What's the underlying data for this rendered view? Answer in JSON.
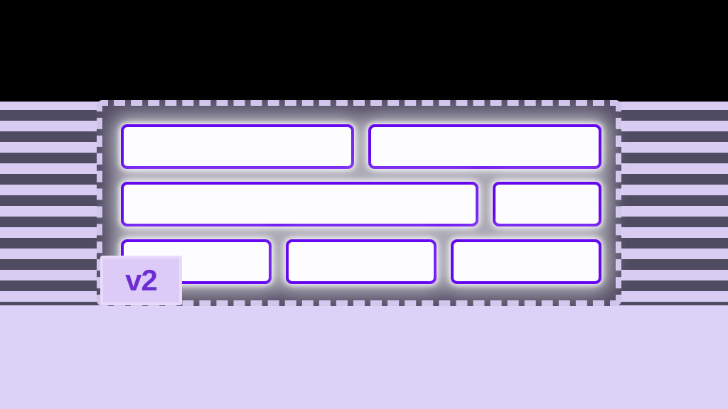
{
  "badge": {
    "label": "v2"
  },
  "wireframe": {
    "rows": [
      {
        "boxes": [
          {
            "flex": 1
          },
          {
            "flex": 1
          }
        ]
      },
      {
        "boxes": [
          {
            "flex": 3.4
          },
          {
            "flex": 1
          }
        ]
      },
      {
        "boxes": [
          {
            "flex": 1
          },
          {
            "flex": 1
          },
          {
            "flex": 1
          }
        ]
      }
    ]
  },
  "colors": {
    "black_band": "#000000",
    "stripe_light": "#d8ccf3",
    "stripe_dark": "#4f4b60",
    "panel_fill": "#544f66",
    "panel_dash": "#d0c4ec",
    "box_border": "#6507ef",
    "box_fill": "#fdfdff",
    "bottom_background": "#dcd2f7",
    "badge_background": "#ddcbf7",
    "badge_border": "#e9dafb",
    "badge_text": "#6c2ed3"
  }
}
